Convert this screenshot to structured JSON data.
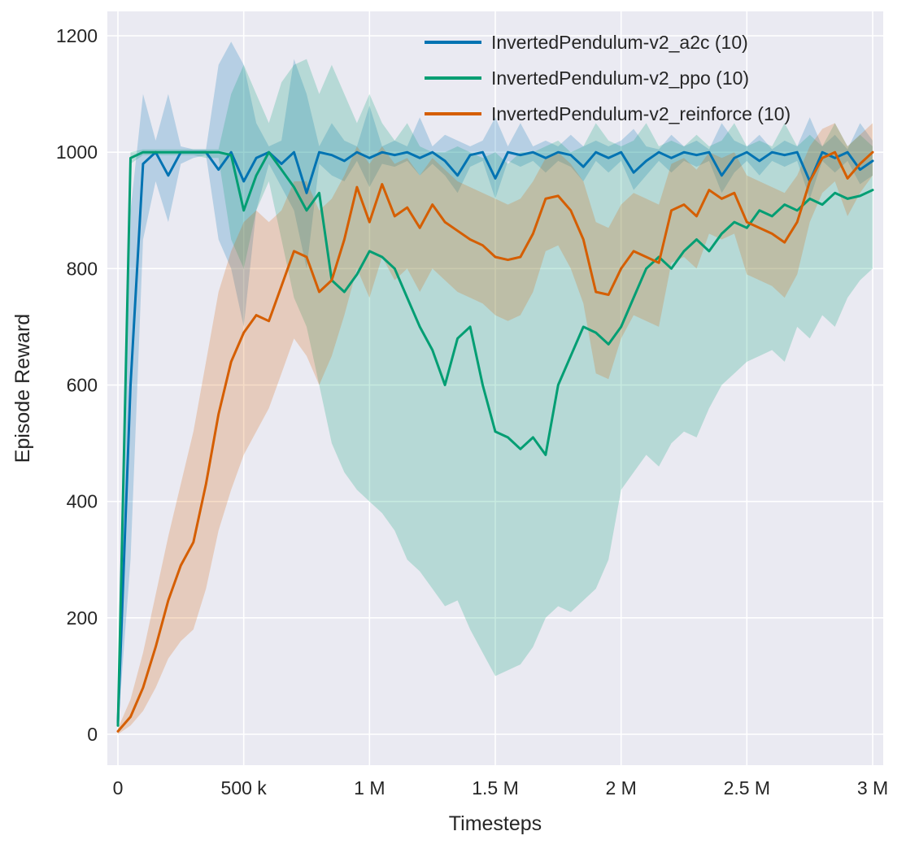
{
  "chart_data": {
    "type": "line",
    "title": "",
    "xlabel": "Timesteps",
    "ylabel": "Episode Reward",
    "xlim": [
      0,
      3000000
    ],
    "ylim": [
      0,
      1200
    ],
    "grid": true,
    "background": "#eaeaf2",
    "grid_color": "#ffffff",
    "legend_position": "upper center",
    "band_opacity": 0.22,
    "xticks": {
      "values": [
        0,
        500000,
        1000000,
        1500000,
        2000000,
        2500000,
        3000000
      ],
      "labels": [
        "0",
        "500 k",
        "1 M",
        "1.5 M",
        "2 M",
        "2.5 M",
        "3 M"
      ]
    },
    "yticks": {
      "values": [
        0,
        200,
        400,
        600,
        800,
        1000,
        1200
      ],
      "labels": [
        "0",
        "200",
        "400",
        "600",
        "800",
        "1000",
        "1200"
      ]
    },
    "x": [
      0,
      50000,
      100000,
      150000,
      200000,
      250000,
      300000,
      350000,
      400000,
      450000,
      500000,
      550000,
      600000,
      650000,
      700000,
      750000,
      800000,
      850000,
      900000,
      950000,
      1000000,
      1050000,
      1100000,
      1150000,
      1200000,
      1250000,
      1300000,
      1350000,
      1400000,
      1450000,
      1500000,
      1550000,
      1600000,
      1650000,
      1700000,
      1750000,
      1800000,
      1850000,
      1900000,
      1950000,
      2000000,
      2050000,
      2100000,
      2150000,
      2200000,
      2250000,
      2300000,
      2350000,
      2400000,
      2450000,
      2500000,
      2550000,
      2600000,
      2650000,
      2700000,
      2750000,
      2800000,
      2850000,
      2900000,
      2950000,
      3000000
    ],
    "series": [
      {
        "name": "InvertedPendulum-v2_a2c (10)",
        "color": "#0173b2",
        "mean": [
          20,
          600,
          980,
          1000,
          960,
          1000,
          1000,
          1000,
          970,
          1000,
          950,
          990,
          1000,
          980,
          1000,
          930,
          1000,
          995,
          985,
          1000,
          990,
          1000,
          995,
          1000,
          990,
          1000,
          985,
          960,
          995,
          1000,
          955,
          1000,
          995,
          1000,
          990,
          1000,
          995,
          975,
          1000,
          990,
          1000,
          965,
          985,
          1000,
          990,
          1000,
          995,
          1000,
          960,
          990,
          1000,
          985,
          1000,
          995,
          1000,
          950,
          1000,
          990,
          1000,
          970,
          985
        ],
        "lower": [
          10,
          300,
          850,
          950,
          880,
          980,
          990,
          995,
          850,
          800,
          700,
          900,
          980,
          940,
          900,
          800,
          980,
          960,
          950,
          985,
          940,
          980,
          975,
          985,
          960,
          980,
          960,
          930,
          975,
          985,
          920,
          985,
          975,
          985,
          965,
          985,
          975,
          950,
          985,
          965,
          985,
          935,
          960,
          985,
          965,
          985,
          975,
          985,
          930,
          965,
          985,
          960,
          985,
          975,
          985,
          920,
          985,
          965,
          985,
          945,
          960
        ],
        "upper": [
          30,
          900,
          1100,
          1020,
          1100,
          1010,
          1005,
          1005,
          1150,
          1190,
          1150,
          1050,
          1010,
          1020,
          1160,
          1100,
          1010,
          1050,
          1020,
          1010,
          1080,
          1010,
          1020,
          1010,
          1060,
          1010,
          1030,
          1020,
          1010,
          1020,
          1060,
          1010,
          1050,
          1010,
          1020,
          1010,
          1030,
          1010,
          1020,
          1010,
          1020,
          1040,
          1010,
          1005,
          1030,
          1010,
          1020,
          1005,
          1050,
          1020,
          1010,
          1030,
          1005,
          1020,
          1010,
          1060,
          1010,
          1030,
          1005,
          1050,
          1020
        ]
      },
      {
        "name": "InvertedPendulum-v2_ppo (10)",
        "color": "#029e73",
        "mean": [
          15,
          990,
          1000,
          1000,
          1000,
          1000,
          1000,
          1000,
          1000,
          995,
          900,
          960,
          1000,
          970,
          940,
          900,
          930,
          780,
          760,
          790,
          830,
          820,
          800,
          750,
          700,
          660,
          600,
          680,
          700,
          600,
          520,
          510,
          490,
          510,
          480,
          600,
          650,
          700,
          690,
          670,
          700,
          750,
          800,
          820,
          800,
          830,
          850,
          830,
          860,
          880,
          870,
          900,
          890,
          910,
          900,
          920,
          910,
          930,
          920,
          925,
          935
        ],
        "lower": [
          10,
          980,
          995,
          995,
          995,
          995,
          995,
          990,
          990,
          850,
          800,
          900,
          950,
          850,
          750,
          700,
          600,
          500,
          450,
          420,
          400,
          380,
          350,
          300,
          280,
          250,
          220,
          230,
          180,
          140,
          100,
          110,
          120,
          150,
          200,
          220,
          210,
          230,
          250,
          300,
          420,
          450,
          480,
          460,
          500,
          520,
          510,
          560,
          600,
          620,
          640,
          650,
          660,
          640,
          700,
          680,
          720,
          700,
          750,
          780,
          800
        ],
        "upper": [
          20,
          1000,
          1005,
          1005,
          1005,
          1005,
          1005,
          1005,
          1005,
          1100,
          1150,
          1100,
          1050,
          1120,
          1150,
          1160,
          1100,
          1150,
          1100,
          1050,
          1100,
          1050,
          1020,
          1050,
          1010,
          1000,
          1000,
          1010,
          1000,
          990,
          1000,
          980,
          1000,
          1000,
          1010,
          1020,
          1000,
          1010,
          1050,
          1020,
          1010,
          1020,
          1050,
          1010,
          1020,
          1010,
          1030,
          1010,
          1020,
          1050,
          1010,
          1020,
          1010,
          1050,
          1010,
          1030,
          1010,
          1050,
          1010,
          1030,
          1010
        ]
      },
      {
        "name": "InvertedPendulum-v2_reinforce (10)",
        "color": "#d55e00",
        "mean": [
          5,
          30,
          80,
          150,
          230,
          290,
          330,
          430,
          550,
          640,
          690,
          720,
          710,
          770,
          830,
          820,
          760,
          780,
          850,
          940,
          880,
          945,
          890,
          905,
          870,
          910,
          880,
          865,
          850,
          840,
          820,
          815,
          820,
          860,
          920,
          925,
          900,
          850,
          760,
          755,
          800,
          830,
          820,
          810,
          900,
          910,
          890,
          935,
          920,
          930,
          880,
          870,
          860,
          845,
          880,
          950,
          990,
          1000,
          955,
          980,
          1000
        ],
        "lower": [
          0,
          15,
          40,
          80,
          130,
          160,
          180,
          250,
          350,
          420,
          480,
          520,
          560,
          620,
          680,
          650,
          600,
          650,
          720,
          800,
          750,
          820,
          780,
          800,
          760,
          800,
          780,
          760,
          750,
          740,
          720,
          710,
          720,
          760,
          830,
          840,
          800,
          740,
          620,
          610,
          680,
          720,
          710,
          700,
          810,
          820,
          800,
          860,
          850,
          860,
          790,
          780,
          770,
          750,
          790,
          880,
          930,
          950,
          890,
          930,
          960
        ],
        "upper": [
          10,
          60,
          140,
          240,
          340,
          430,
          520,
          640,
          760,
          830,
          880,
          900,
          880,
          900,
          950,
          950,
          900,
          920,
          960,
          1010,
          980,
          1010,
          980,
          990,
          960,
          990,
          970,
          950,
          940,
          930,
          920,
          910,
          920,
          950,
          990,
          1000,
          980,
          950,
          880,
          870,
          910,
          930,
          920,
          910,
          980,
          990,
          970,
          1000,
          990,
          1000,
          960,
          950,
          940,
          930,
          960,
          1010,
          1040,
          1050,
          1010,
          1030,
          1050
        ]
      }
    ]
  }
}
